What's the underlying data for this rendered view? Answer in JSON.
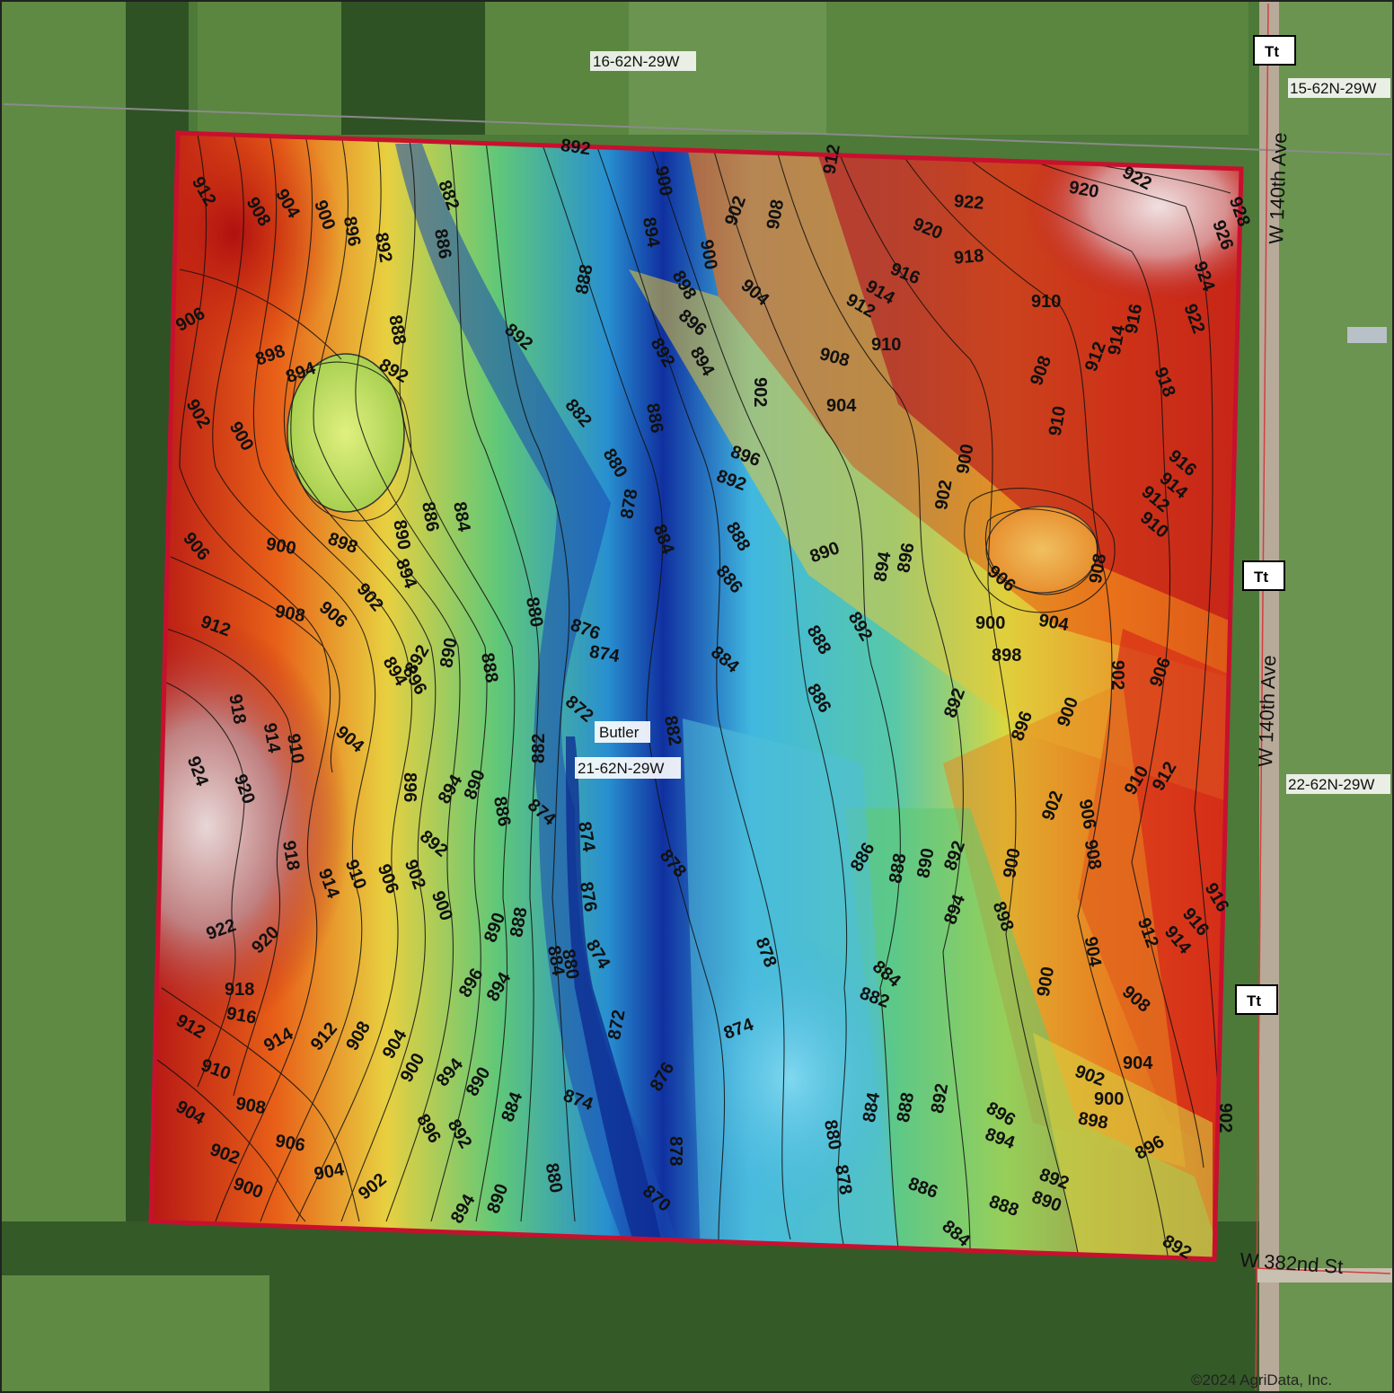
{
  "map": {
    "sections": [
      {
        "text": "16-62N-29W"
      },
      {
        "text": "15-62N-29W"
      },
      {
        "text": "22-62N-29W"
      }
    ],
    "field": {
      "name": "Butler",
      "section": "21-62N-29W"
    },
    "roads": [
      {
        "name": "W 140th Ave"
      },
      {
        "name": "W 140th Ave"
      },
      {
        "name": "W 382nd St"
      }
    ],
    "soil_markers": [
      "Tt",
      "Tt",
      "Tt"
    ],
    "copyright": "©2024 AgriData, Inc.",
    "contour_labels": [
      "892",
      "912",
      "922",
      "920",
      "922",
      "928",
      "926",
      "924",
      "922",
      "920",
      "918",
      "916",
      "914",
      "912",
      "910",
      "908",
      "906",
      "904",
      "902",
      "900",
      "898",
      "896",
      "894",
      "892",
      "890",
      "888",
      "886",
      "884",
      "882",
      "880",
      "878",
      "876",
      "874",
      "872",
      "870"
    ],
    "colors": {
      "boundary": "#c8102e",
      "high": "#b41414",
      "mid_high": "#f0a020",
      "mid": "#e8e040",
      "mid_low": "#50c8a0",
      "low": "#2878d8",
      "lowest": "#0c2890",
      "peak": "#d8c0c0",
      "background": "#3f6a2c"
    }
  }
}
